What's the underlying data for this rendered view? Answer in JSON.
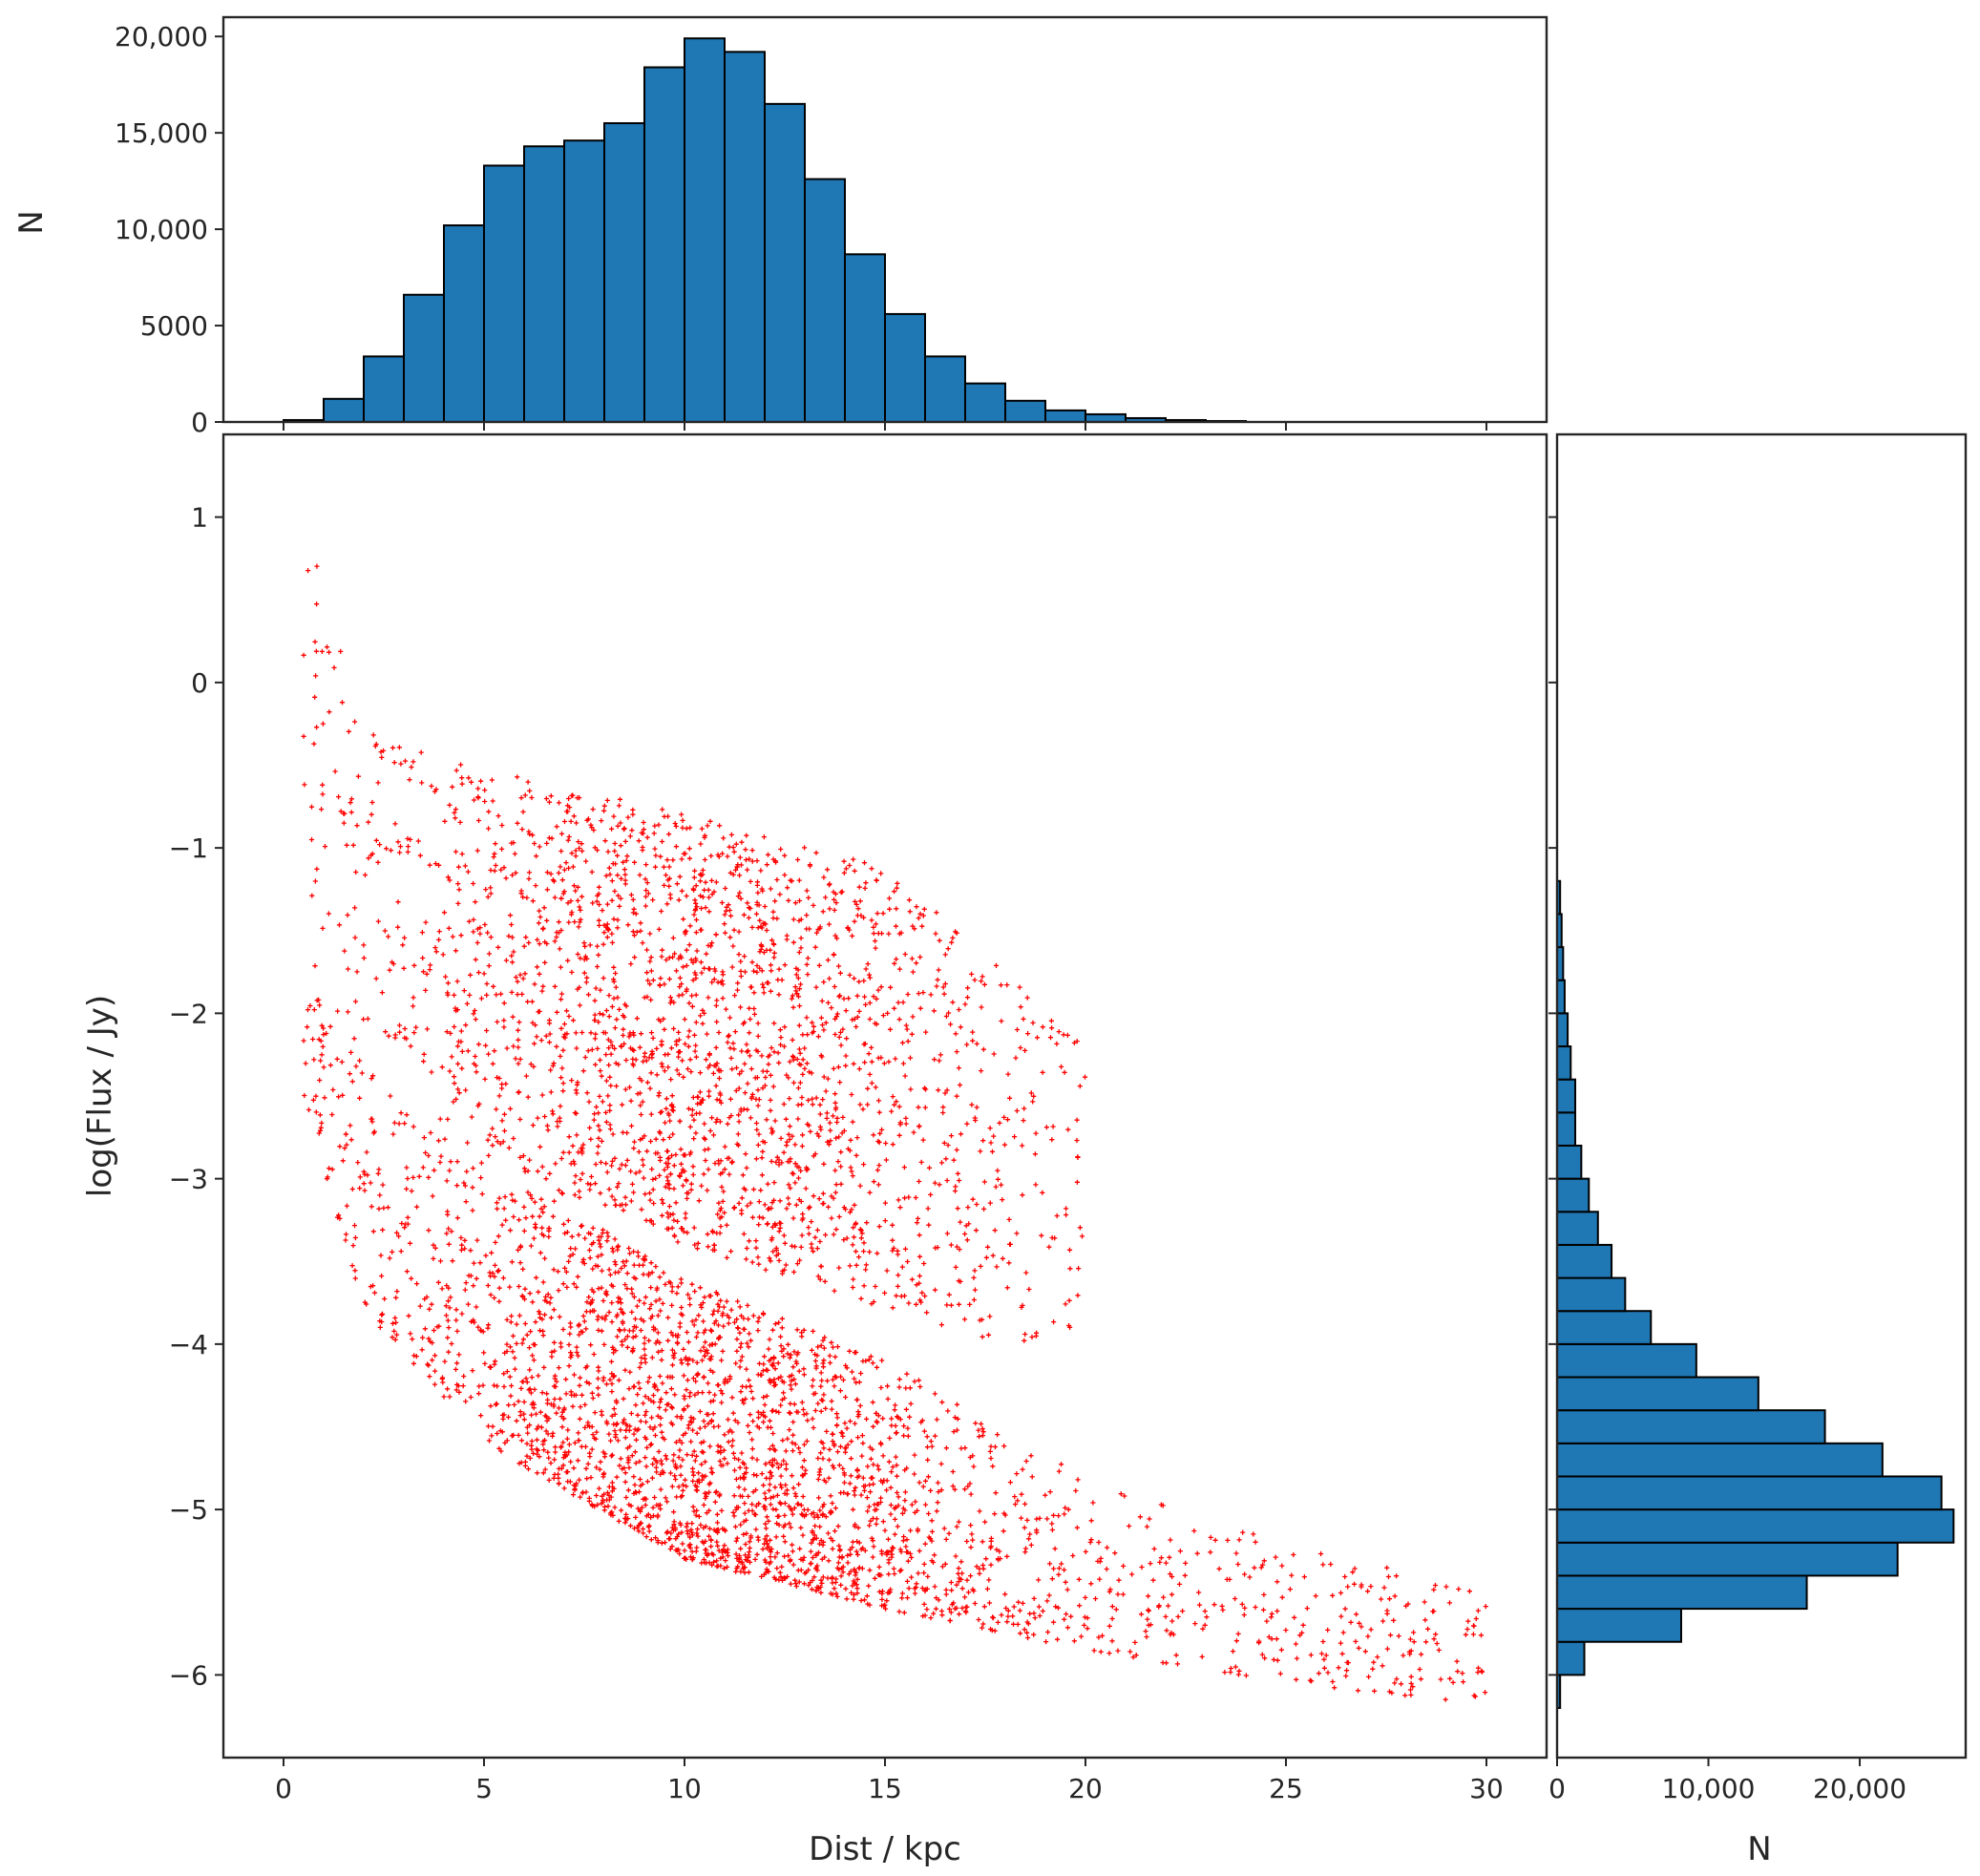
{
  "chart_data": [
    {
      "id": "scatter",
      "type": "scatter",
      "xlabel": "Dist / kpc",
      "ylabel": "log(Flux / Jy)",
      "xlim": [
        -1.5,
        31.5
      ],
      "ylim": [
        -6.5,
        1.5
      ],
      "xticks": [
        0,
        5,
        10,
        15,
        20,
        25,
        30
      ],
      "xtick_labels": [
        "0",
        "5",
        "10",
        "15",
        "20",
        "25",
        "30"
      ],
      "yticks": [
        1,
        0,
        -1,
        -2,
        -3,
        -4,
        -5,
        -6
      ],
      "ytick_labels": [
        "1",
        "0",
        "−1",
        "−2",
        "−3",
        "−4",
        "−5",
        "−6"
      ],
      "marker": "+",
      "color": "#ff0000",
      "grid": false,
      "populations": [
        {
          "lower_envelope_points": [
            [
              0.5,
              -2.5
            ],
            [
              2,
              -3.8
            ],
            [
              5,
              -4.6
            ],
            [
              10,
              -5.3
            ],
            [
              15,
              -5.6
            ],
            [
              20,
              -5.85
            ],
            [
              25,
              -6.05
            ],
            [
              29,
              -6.15
            ]
          ],
          "upper_envelope_points": [
            [
              0.5,
              -1.8
            ],
            [
              3,
              -2.6
            ],
            [
              10,
              -3.6
            ],
            [
              15,
              -4.1
            ],
            [
              20,
              -4.8
            ],
            [
              25,
              -5.2
            ],
            [
              30,
              -5.5
            ]
          ]
        },
        {
          "lower_envelope_points": [
            [
              1.8,
              -2.2
            ],
            [
              5,
              -2.9
            ],
            [
              10,
              -3.4
            ],
            [
              15,
              -3.8
            ],
            [
              18,
              -4.0
            ]
          ],
          "upper_envelope_points": [
            [
              0.5,
              1.1
            ],
            [
              2,
              -0.3
            ],
            [
              5,
              -0.5
            ],
            [
              10,
              -0.8
            ],
            [
              15,
              -1.1
            ],
            [
              20,
              -2.2
            ]
          ]
        }
      ]
    },
    {
      "id": "top-histogram",
      "type": "bar",
      "ylabel": "N",
      "ylim": [
        0,
        21000
      ],
      "yticks": [
        0,
        5000,
        10000,
        15000,
        20000
      ],
      "ytick_labels": [
        "0",
        "5000",
        "10,000",
        "15,000",
        "20,000"
      ],
      "bin_width": 1,
      "bin_edges_start": 0,
      "values": [
        100,
        1200,
        3400,
        6600,
        10200,
        13300,
        14300,
        14600,
        15500,
        18400,
        19900,
        19200,
        16500,
        12600,
        8700,
        5600,
        3400,
        2000,
        1100,
        600,
        400,
        200,
        100,
        50
      ],
      "color": "#1f77b4",
      "edgecolor": "#000000"
    },
    {
      "id": "right-histogram",
      "type": "bar",
      "orientation": "horizontal",
      "xlabel": "N",
      "xlim": [
        0,
        27000
      ],
      "xticks": [
        0,
        10000,
        20000
      ],
      "xtick_labels": [
        "0",
        "10,000",
        "20,000"
      ],
      "bin_width": 0.2,
      "bin_edges_start": -6.2,
      "values": [
        200,
        1800,
        8200,
        16500,
        22500,
        26200,
        25400,
        21500,
        17700,
        13300,
        9200,
        6200,
        4500,
        3600,
        2700,
        2100,
        1600,
        1200,
        1200,
        900,
        700,
        500,
        400,
        300,
        200
      ],
      "color": "#1f77b4",
      "edgecolor": "#000000"
    }
  ]
}
